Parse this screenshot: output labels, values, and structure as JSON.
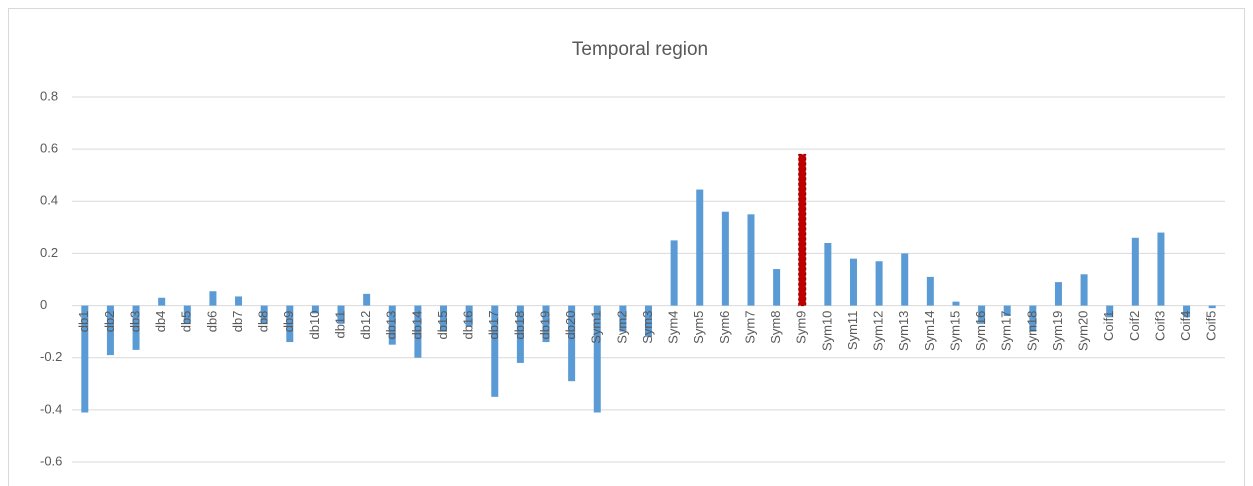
{
  "chart_data": {
    "type": "bar",
    "title": "Temporal region",
    "categories": [
      "db1",
      "db2",
      "db3",
      "db4",
      "db5",
      "db6",
      "db7",
      "db8",
      "db9",
      "db10",
      "db11",
      "db12",
      "db13",
      "db14",
      "db15",
      "db16",
      "db17",
      "db18",
      "db19",
      "db20",
      "Sym1",
      "Sym2",
      "Sym3",
      "Sym4",
      "Sym5",
      "Sym6",
      "Sym7",
      "Sym8",
      "Sym9",
      "Sym10",
      "Sym11",
      "Sym12",
      "Sym13",
      "Sym14",
      "Sym15",
      "Sym16",
      "Sym17",
      "Sym18",
      "Sym19",
      "Sym20",
      "Coif1",
      "Coif2",
      "Coif3",
      "Coif4",
      "Coif5"
    ],
    "values": [
      -0.41,
      -0.19,
      -0.17,
      0.03,
      -0.07,
      0.055,
      0.035,
      -0.07,
      -0.14,
      -0.03,
      -0.07,
      0.045,
      -0.15,
      -0.2,
      -0.1,
      -0.08,
      -0.35,
      -0.22,
      -0.14,
      -0.29,
      -0.41,
      -0.1,
      -0.12,
      0.25,
      0.445,
      0.36,
      0.35,
      0.14,
      0.58,
      0.24,
      0.18,
      0.17,
      0.2,
      0.11,
      0.015,
      -0.07,
      -0.04,
      -0.1,
      0.09,
      0.12,
      -0.045,
      0.26,
      0.28,
      -0.045,
      -0.01
    ],
    "color": "#5b9bd5",
    "highlight_category": "Sym9",
    "highlight_color": "#c00000",
    "ylim": [
      -0.6,
      0.8
    ],
    "yticks": [
      -0.6,
      -0.4,
      -0.2,
      0,
      0.2,
      0.4,
      0.6,
      0.8
    ],
    "grid": true
  }
}
